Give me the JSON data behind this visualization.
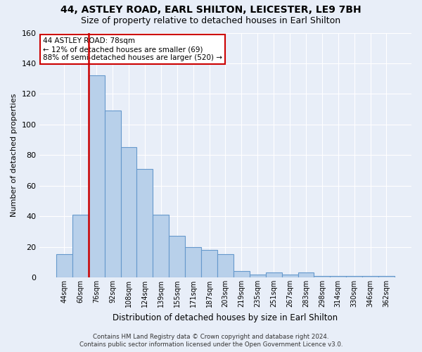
{
  "title": "44, ASTLEY ROAD, EARL SHILTON, LEICESTER, LE9 7BH",
  "subtitle": "Size of property relative to detached houses in Earl Shilton",
  "xlabel": "Distribution of detached houses by size in Earl Shilton",
  "ylabel": "Number of detached properties",
  "categories": [
    "44sqm",
    "60sqm",
    "76sqm",
    "92sqm",
    "108sqm",
    "124sqm",
    "139sqm",
    "155sqm",
    "171sqm",
    "187sqm",
    "203sqm",
    "219sqm",
    "235sqm",
    "251sqm",
    "267sqm",
    "283sqm",
    "298sqm",
    "314sqm",
    "330sqm",
    "346sqm",
    "362sqm"
  ],
  "values": [
    15,
    41,
    132,
    109,
    85,
    71,
    41,
    27,
    20,
    18,
    15,
    4,
    2,
    3,
    2,
    3,
    1,
    1,
    1,
    1,
    1
  ],
  "bar_color": "#b8d0ea",
  "bar_edge_color": "#6699cc",
  "highlight_bar_index": 2,
  "highlight_edge_color": "#cc0000",
  "annotation_box_line1": "44 ASTLEY ROAD: 78sqm",
  "annotation_box_line2": "← 12% of detached houses are smaller (69)",
  "annotation_box_line3": "88% of semi-detached houses are larger (520) →",
  "annotation_box_edge_color": "#cc0000",
  "annotation_box_face_color": "#ffffff",
  "ylim": [
    0,
    160
  ],
  "yticks": [
    0,
    20,
    40,
    60,
    80,
    100,
    120,
    140,
    160
  ],
  "background_color": "#e8eef8",
  "grid_color": "#ffffff",
  "footer_line1": "Contains HM Land Registry data © Crown copyright and database right 2024.",
  "footer_line2": "Contains public sector information licensed under the Open Government Licence v3.0."
}
